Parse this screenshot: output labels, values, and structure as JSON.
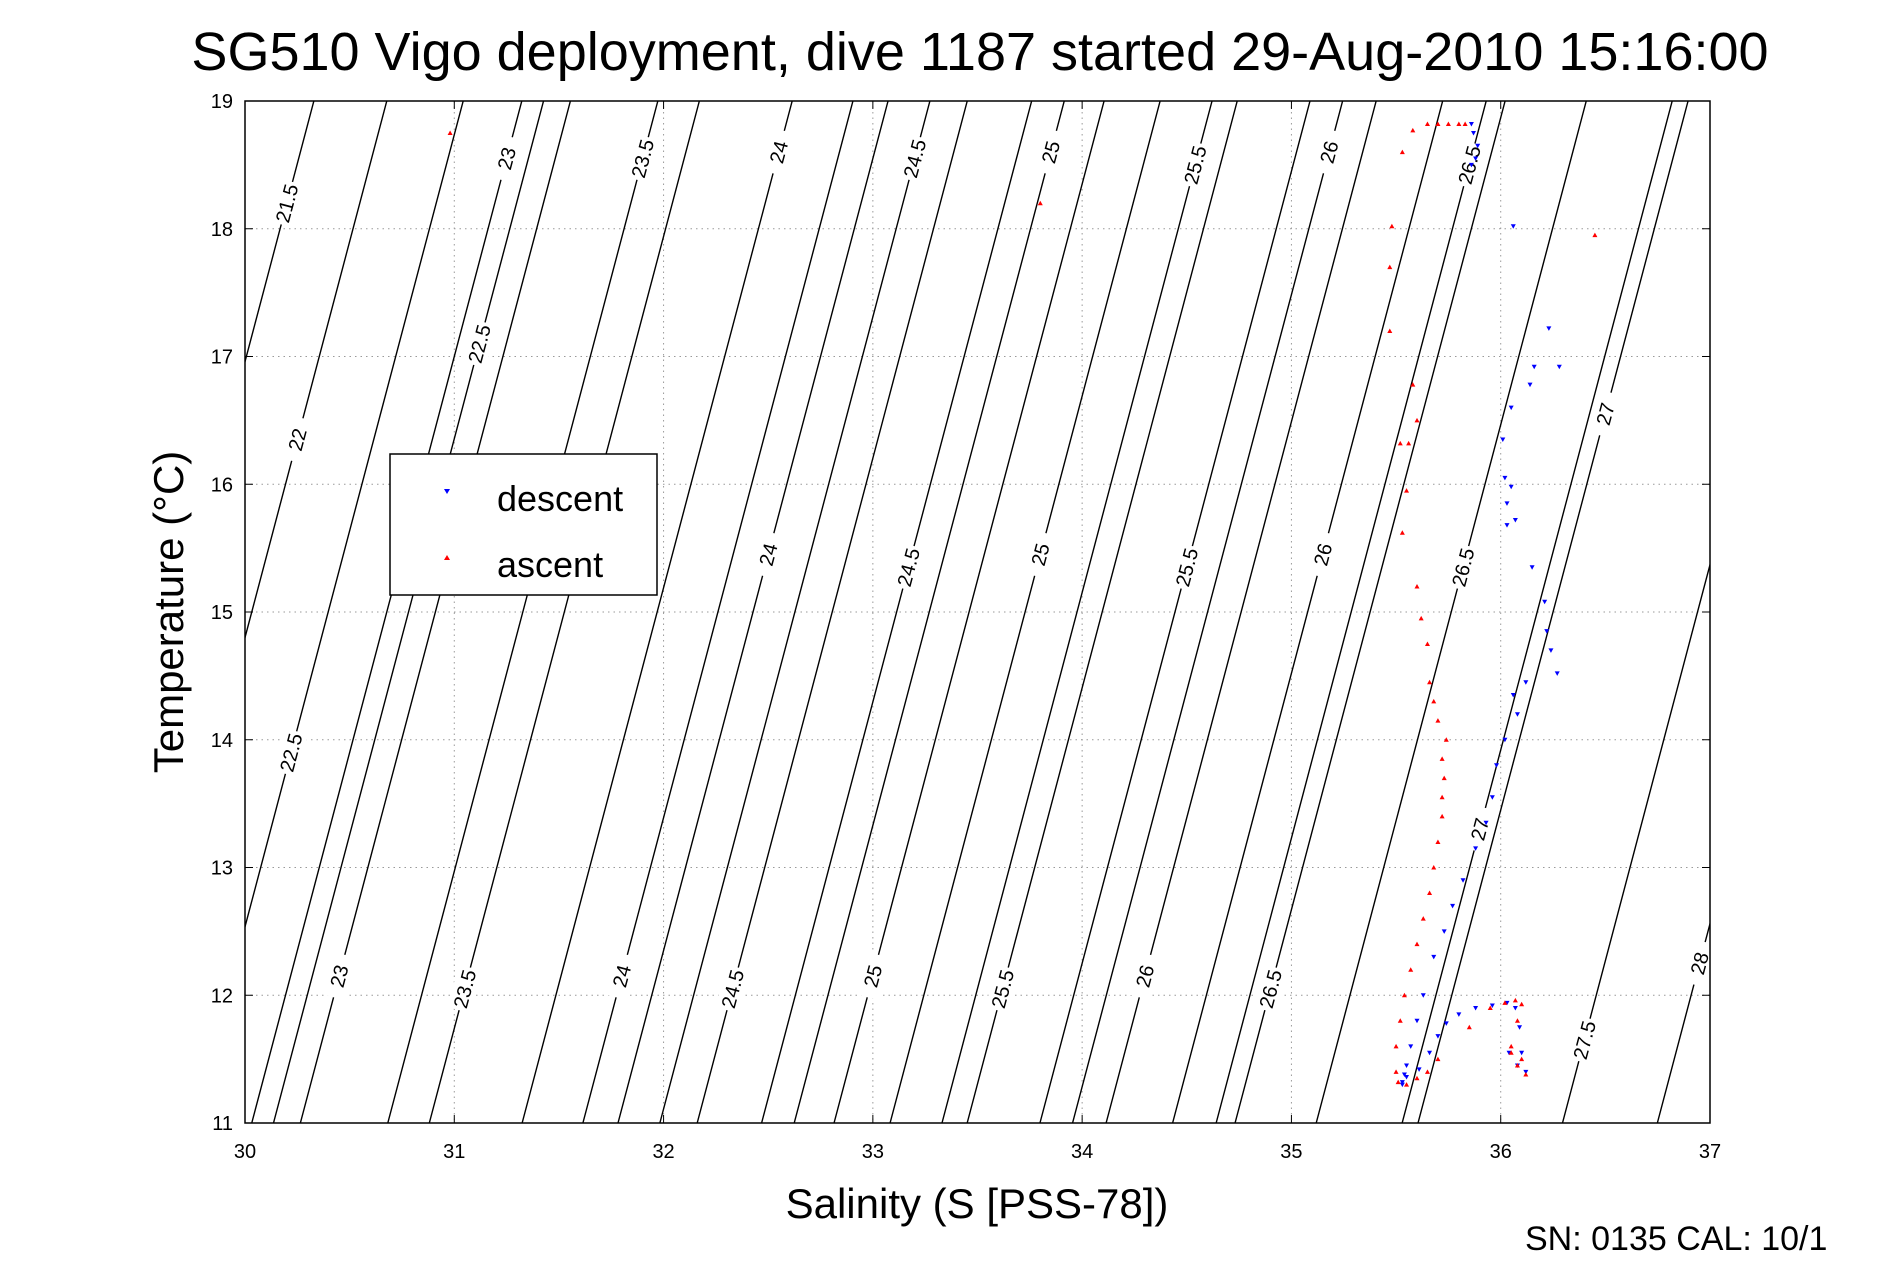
{
  "chart_data": {
    "type": "scatter",
    "title": "SG510 Vigo deployment, dive 1187 started 29-Aug-2010 15:16:00",
    "xlabel": "Salinity (S [PSS-78])",
    "ylabel": "Temperature (°C)",
    "xlim": [
      30,
      37
    ],
    "ylim": [
      11,
      19
    ],
    "xticks": [
      30,
      31,
      32,
      33,
      34,
      35,
      36,
      37
    ],
    "yticks": [
      11,
      12,
      13,
      14,
      15,
      16,
      17,
      18,
      19
    ],
    "grid": true,
    "legend_position": "left",
    "footer": "SN: 0135  CAL: 10/1",
    "density_contours": [
      {
        "sigma": 21.5,
        "label_at": [
          30.2,
          18.2
        ]
      },
      {
        "sigma": 22,
        "label_at": [
          30.25,
          16.35
        ]
      },
      {
        "sigma": 22.5,
        "label_at": [
          30.22,
          13.9
        ]
      },
      {
        "sigma": 22.5,
        "label_at": [
          31.12,
          17.1
        ]
      },
      {
        "sigma": 23,
        "label_at": [
          30.45,
          12.15
        ]
      },
      {
        "sigma": 23,
        "label_at": [
          31.25,
          18.55
        ]
      },
      {
        "sigma": 23.5,
        "label_at": [
          31.05,
          12.05
        ]
      },
      {
        "sigma": 23.5,
        "label_at": [
          31.9,
          18.55
        ]
      },
      {
        "sigma": 24,
        "label_at": [
          31.8,
          12.15
        ]
      },
      {
        "sigma": 24,
        "label_at": [
          32.5,
          15.45
        ]
      },
      {
        "sigma": 24,
        "label_at": [
          32.55,
          18.6
        ]
      },
      {
        "sigma": 24.5,
        "label_at": [
          32.33,
          12.05
        ]
      },
      {
        "sigma": 24.5,
        "label_at": [
          33.17,
          15.35
        ]
      },
      {
        "sigma": 24.5,
        "label_at": [
          33.2,
          18.55
        ]
      },
      {
        "sigma": 25,
        "label_at": [
          33.0,
          12.15
        ]
      },
      {
        "sigma": 25,
        "label_at": [
          33.8,
          15.45
        ]
      },
      {
        "sigma": 25,
        "label_at": [
          33.85,
          18.6
        ]
      },
      {
        "sigma": 25.5,
        "label_at": [
          33.62,
          12.05
        ]
      },
      {
        "sigma": 25.5,
        "label_at": [
          34.5,
          15.35
        ]
      },
      {
        "sigma": 25.5,
        "label_at": [
          34.54,
          18.5
        ]
      },
      {
        "sigma": 26,
        "label_at": [
          34.3,
          12.15
        ]
      },
      {
        "sigma": 26,
        "label_at": [
          35.15,
          15.45
        ]
      },
      {
        "sigma": 26,
        "label_at": [
          35.18,
          18.6
        ]
      },
      {
        "sigma": 26.5,
        "label_at": [
          34.9,
          12.05
        ]
      },
      {
        "sigma": 26.5,
        "label_at": [
          35.82,
          15.35
        ]
      },
      {
        "sigma": 26.5,
        "label_at": [
          35.85,
          18.5
        ]
      },
      {
        "sigma": 27,
        "label_at": [
          35.9,
          13.3
        ]
      },
      {
        "sigma": 27,
        "label_at": [
          36.5,
          16.55
        ]
      },
      {
        "sigma": 27.5,
        "label_at": [
          36.4,
          11.65
        ]
      },
      {
        "sigma": 28,
        "label_at": [
          36.95,
          12.25
        ]
      }
    ],
    "series": [
      {
        "name": "descent",
        "color": "#0000ff",
        "marker": "triangle-down",
        "x": [
          35.86,
          35.87,
          35.89,
          35.88,
          35.86,
          36.06,
          36.23,
          36.28,
          36.16,
          36.14,
          36.05,
          36.01,
          36.02,
          36.05,
          36.03,
          36.07,
          36.03,
          36.15,
          36.21,
          36.22,
          36.24,
          36.27,
          36.12,
          36.06,
          36.08,
          36.02,
          35.98,
          35.96,
          35.93,
          35.88,
          35.82,
          35.77,
          35.73,
          35.68,
          35.63,
          35.6,
          35.57,
          35.55,
          35.54,
          35.53,
          35.53,
          35.55,
          35.61,
          35.66,
          35.7,
          35.74,
          35.8,
          35.88,
          35.96,
          36.03,
          36.07,
          36.09,
          36.1,
          36.12,
          36.08,
          36.04
        ],
        "y": [
          18.82,
          18.75,
          18.65,
          18.55,
          18.5,
          18.02,
          17.22,
          16.92,
          16.92,
          16.78,
          16.6,
          16.35,
          16.05,
          15.98,
          15.85,
          15.72,
          15.68,
          15.35,
          15.08,
          14.85,
          14.7,
          14.52,
          14.45,
          14.35,
          14.2,
          14.0,
          13.8,
          13.55,
          13.35,
          13.15,
          12.9,
          12.7,
          12.5,
          12.3,
          12.0,
          11.8,
          11.6,
          11.45,
          11.38,
          11.32,
          11.3,
          11.36,
          11.42,
          11.55,
          11.68,
          11.78,
          11.85,
          11.9,
          11.92,
          11.94,
          11.9,
          11.75,
          11.55,
          11.4,
          11.45,
          11.55
        ]
      },
      {
        "name": "ascent",
        "color": "#ff0000",
        "marker": "triangle-up",
        "x": [
          30.98,
          33.8,
          36.45,
          35.83,
          35.8,
          35.75,
          35.7,
          35.65,
          35.58,
          35.53,
          35.48,
          35.47,
          35.47,
          35.58,
          35.6,
          35.56,
          35.52,
          35.55,
          35.53,
          35.6,
          35.62,
          35.65,
          35.66,
          35.68,
          35.7,
          35.74,
          35.72,
          35.73,
          35.72,
          35.72,
          35.7,
          35.68,
          35.66,
          35.63,
          35.6,
          35.57,
          35.54,
          35.52,
          35.5,
          35.5,
          35.51,
          35.55,
          35.6,
          35.65,
          35.7,
          35.85,
          35.95,
          36.02,
          36.07,
          36.1,
          36.08,
          36.05,
          36.08,
          36.12,
          36.1,
          36.05
        ],
        "y": [
          18.75,
          18.2,
          17.95,
          18.82,
          18.82,
          18.82,
          18.82,
          18.82,
          18.77,
          18.6,
          18.02,
          17.7,
          17.2,
          16.78,
          16.5,
          16.32,
          16.32,
          15.95,
          15.62,
          15.2,
          14.95,
          14.75,
          14.45,
          14.3,
          14.15,
          14.0,
          13.85,
          13.7,
          13.55,
          13.4,
          13.2,
          13.0,
          12.8,
          12.6,
          12.4,
          12.2,
          12.0,
          11.8,
          11.6,
          11.4,
          11.32,
          11.3,
          11.35,
          11.4,
          11.5,
          11.75,
          11.9,
          11.94,
          11.96,
          11.93,
          11.8,
          11.55,
          11.45,
          11.38,
          11.5,
          11.6
        ]
      }
    ]
  }
}
